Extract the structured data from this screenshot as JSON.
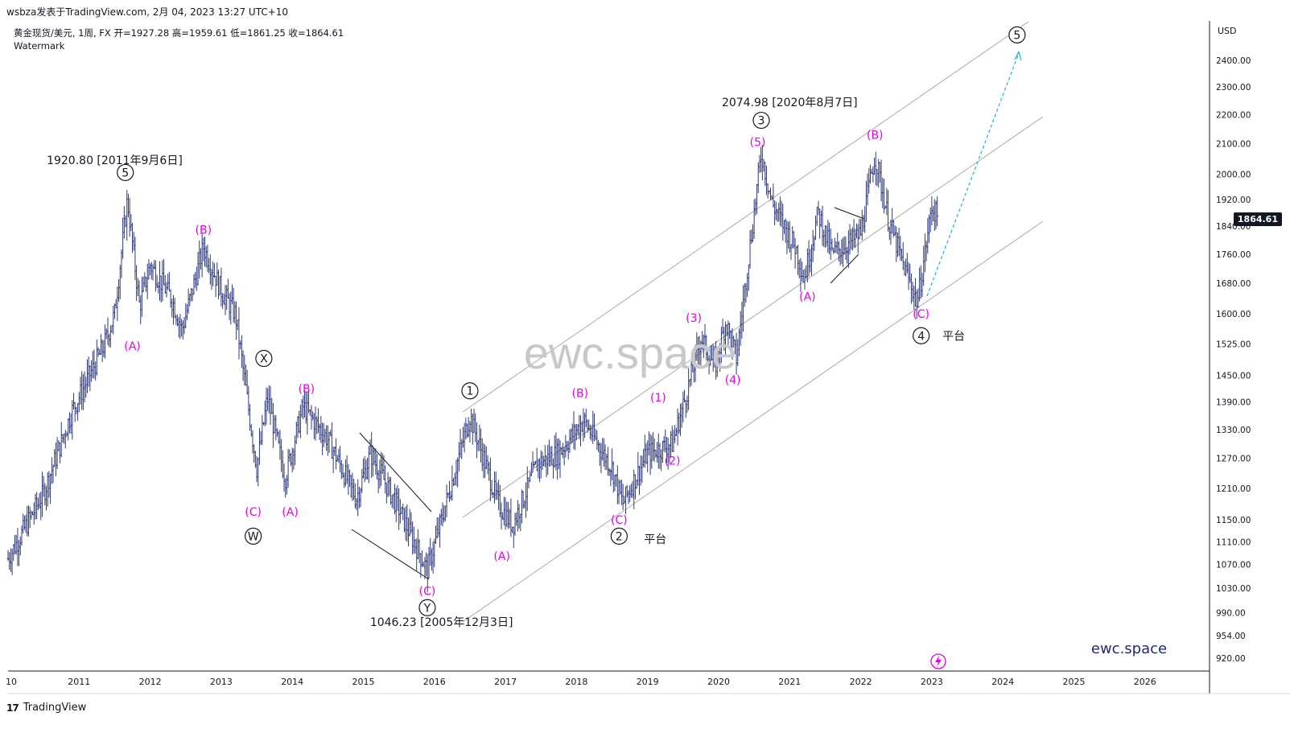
{
  "header": {
    "publisher_line": "wsbza发表于TradingView.com, 2月 04, 2023 13:27 UTC+10",
    "symbol_line": "黄金现货/美元, 1周, FX  开=1927.28  高=1959.61  低=1861.25  收=1864.61",
    "watermark_label": "Watermark"
  },
  "footer": {
    "logo": "17",
    "brand": "TradingView"
  },
  "colors": {
    "wave_label": "#e600e6",
    "candles": "#2f3a7a",
    "channel": "#a9a9a9",
    "projection": "#2fb4e0",
    "last_price_bg": "#131722",
    "watermark": "#c8c8c8",
    "brand_text": "#1e2a78"
  },
  "chart_data": {
    "type": "ohlc",
    "currency": "USD",
    "last_price": "1864.61",
    "x_ticks": [
      "10",
      "2011",
      "2012",
      "2013",
      "2014",
      "2015",
      "2016",
      "2017",
      "2018",
      "2019",
      "2020",
      "2021",
      "2022",
      "2023",
      "2024",
      "2025",
      "2026"
    ],
    "y_ticks": [
      "2400.00",
      "2300.00",
      "2200.00",
      "2100.00",
      "2000.00",
      "1920.00",
      "1840.00",
      "1760.00",
      "1680.00",
      "1600.00",
      "1525.00",
      "1450.00",
      "1390.00",
      "1330.00",
      "1270.00",
      "1210.00",
      "1150.00",
      "1110.00",
      "1070.00",
      "1030.00",
      "990.00",
      "954.00",
      "920.00"
    ],
    "y_range": [
      900,
      2490
    ],
    "y_scale": "log",
    "approx_path": [
      {
        "x": 2010.0,
        "y": 1080
      },
      {
        "x": 2010.5,
        "y": 1200
      },
      {
        "x": 2010.9,
        "y": 1370
      },
      {
        "x": 2011.35,
        "y": 1520
      },
      {
        "x": 2011.5,
        "y": 1600
      },
      {
        "x": 2011.68,
        "y": 1920
      },
      {
        "x": 2011.85,
        "y": 1620
      },
      {
        "x": 2012.0,
        "y": 1730
      },
      {
        "x": 2012.3,
        "y": 1640
      },
      {
        "x": 2012.45,
        "y": 1560
      },
      {
        "x": 2012.75,
        "y": 1780
      },
      {
        "x": 2013.0,
        "y": 1660
      },
      {
        "x": 2013.2,
        "y": 1600
      },
      {
        "x": 2013.5,
        "y": 1250
      },
      {
        "x": 2013.65,
        "y": 1400
      },
      {
        "x": 2013.9,
        "y": 1230
      },
      {
        "x": 2014.15,
        "y": 1380
      },
      {
        "x": 2014.5,
        "y": 1310
      },
      {
        "x": 2014.9,
        "y": 1190
      },
      {
        "x": 2015.1,
        "y": 1280
      },
      {
        "x": 2015.5,
        "y": 1170
      },
      {
        "x": 2015.9,
        "y": 1060
      },
      {
        "x": 2016.1,
        "y": 1150
      },
      {
        "x": 2016.5,
        "y": 1360
      },
      {
        "x": 2016.9,
        "y": 1180
      },
      {
        "x": 2017.1,
        "y": 1140
      },
      {
        "x": 2017.45,
        "y": 1260
      },
      {
        "x": 2017.75,
        "y": 1280
      },
      {
        "x": 2018.1,
        "y": 1350
      },
      {
        "x": 2018.5,
        "y": 1250
      },
      {
        "x": 2018.65,
        "y": 1180
      },
      {
        "x": 2019.0,
        "y": 1280
      },
      {
        "x": 2019.35,
        "y": 1300
      },
      {
        "x": 2019.6,
        "y": 1440
      },
      {
        "x": 2019.75,
        "y": 1540
      },
      {
        "x": 2019.95,
        "y": 1470
      },
      {
        "x": 2020.1,
        "y": 1580
      },
      {
        "x": 2020.25,
        "y": 1490
      },
      {
        "x": 2020.6,
        "y": 2070
      },
      {
        "x": 2020.75,
        "y": 1910
      },
      {
        "x": 2021.1,
        "y": 1770
      },
      {
        "x": 2021.2,
        "y": 1690
      },
      {
        "x": 2021.4,
        "y": 1880
      },
      {
        "x": 2021.6,
        "y": 1760
      },
      {
        "x": 2021.9,
        "y": 1800
      },
      {
        "x": 2022.0,
        "y": 1820
      },
      {
        "x": 2022.2,
        "y": 2060
      },
      {
        "x": 2022.4,
        "y": 1850
      },
      {
        "x": 2022.6,
        "y": 1730
      },
      {
        "x": 2022.8,
        "y": 1630
      },
      {
        "x": 2023.0,
        "y": 1900
      },
      {
        "x": 2023.09,
        "y": 1864
      }
    ],
    "wave_labels_magenta": [
      {
        "text": "(A)",
        "x": 2011.75,
        "y": 1520
      },
      {
        "text": "(B)",
        "x": 2012.75,
        "y": 1830
      },
      {
        "text": "(C)",
        "x": 2013.45,
        "y": 1165
      },
      {
        "text": "(A)",
        "x": 2013.97,
        "y": 1165
      },
      {
        "text": "(B)",
        "x": 2014.2,
        "y": 1420
      },
      {
        "text": "(C)",
        "x": 2015.9,
        "y": 1025
      },
      {
        "text": "(A)",
        "x": 2016.95,
        "y": 1085
      },
      {
        "text": "(B)",
        "x": 2018.05,
        "y": 1410
      },
      {
        "text": "(C)",
        "x": 2018.6,
        "y": 1150
      },
      {
        "text": "(1)",
        "x": 2019.15,
        "y": 1400
      },
      {
        "text": "(2)",
        "x": 2019.35,
        "y": 1265
      },
      {
        "text": "(3)",
        "x": 2019.65,
        "y": 1590
      },
      {
        "text": "(4)",
        "x": 2020.2,
        "y": 1440
      },
      {
        "text": "(5)",
        "x": 2020.55,
        "y": 2105
      },
      {
        "text": "(A)",
        "x": 2021.25,
        "y": 1645
      },
      {
        "text": "(B)",
        "x": 2022.2,
        "y": 2130
      },
      {
        "text": "(C)",
        "x": 2022.85,
        "y": 1600
      }
    ],
    "wave_labels_circled": [
      {
        "text": "5",
        "x": 2011.65,
        "y": 2005
      },
      {
        "text": "X",
        "x": 2013.6,
        "y": 1490
      },
      {
        "text": "W",
        "x": 2013.45,
        "y": 1120
      },
      {
        "text": "Y",
        "x": 2015.9,
        "y": 998
      },
      {
        "text": "1",
        "x": 2016.5,
        "y": 1415
      },
      {
        "text": "2",
        "x": 2018.6,
        "y": 1120
      },
      {
        "text": "3",
        "x": 2020.6,
        "y": 2180
      },
      {
        "text": "4",
        "x": 2022.85,
        "y": 1545
      },
      {
        "text": "5",
        "x": 2024.2,
        "y": 2500
      }
    ],
    "annotations": [
      {
        "text": "1920.80 [2011年9月6日]",
        "x": 2011.5,
        "y": 2045
      },
      {
        "text": "2074.98 [2020年8月7日]",
        "x": 2021.0,
        "y": 2245
      },
      {
        "text": "1046.23 [2005年12月3日]",
        "x": 2016.1,
        "y": 975
      },
      {
        "text": "平台",
        "x": 2018.95,
        "y": 1115
      },
      {
        "text": "平台",
        "x": 2023.15,
        "y": 1545
      }
    ],
    "watermark_text": "ewc.space",
    "brand_text": "ewc.space"
  }
}
